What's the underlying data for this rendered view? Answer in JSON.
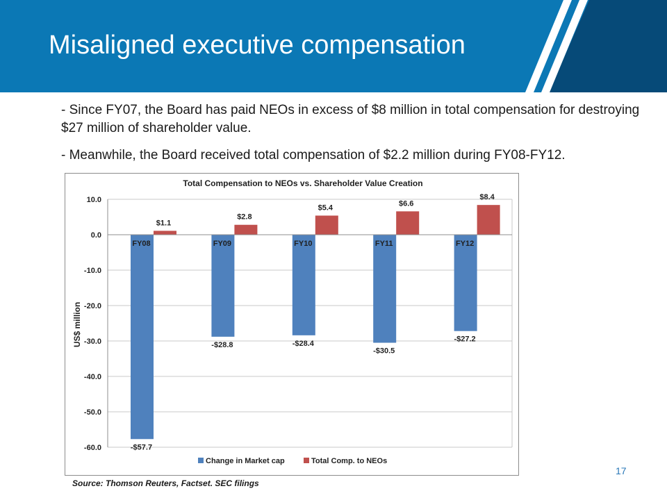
{
  "header": {
    "title": "Misaligned executive compensation",
    "banner_color": "#0b78b5",
    "banner_dark_color": "#064a78"
  },
  "bullets": [
    "- Since FY07, the Board has paid NEOs in excess of $8 million in total compensation for destroying $27 million of shareholder value.",
    "- Meanwhile, the Board received total compensation of $2.2 million during FY08-FY12."
  ],
  "chart_data": {
    "type": "bar",
    "title": "Total Compensation to NEOs vs. Shareholder Value Creation",
    "xlabel": "",
    "ylabel": "US$ million",
    "categories": [
      "FY08",
      "FY09",
      "FY10",
      "FY11",
      "FY12"
    ],
    "ylim": [
      -60,
      10
    ],
    "yticks": [
      10,
      0,
      -10,
      -20,
      -30,
      -40,
      -50,
      -60
    ],
    "ytick_labels": [
      "10.0",
      "0.0",
      "-10.0",
      "-20.0",
      "-30.0",
      "-40.0",
      "-50.0",
      "-60.0"
    ],
    "grid": true,
    "legend_position": "bottom",
    "series": [
      {
        "name": "Change in Market cap",
        "color": "#4f81bd",
        "values": [
          -57.7,
          -28.8,
          -28.4,
          -30.5,
          -27.2
        ],
        "labels": [
          "-$57.7",
          "-$28.8",
          "-$28.4",
          "-$30.5",
          "-$27.2"
        ]
      },
      {
        "name": "Total Comp. to NEOs",
        "color": "#c0504d",
        "values": [
          1.1,
          2.8,
          5.4,
          6.6,
          8.4
        ],
        "labels": [
          "$1.1",
          "$2.8",
          "$5.4",
          "$6.6",
          "$8.4"
        ]
      }
    ]
  },
  "footer": {
    "source": "Source: Thomson Reuters, Factset. SEC filings",
    "page_number": "17"
  }
}
